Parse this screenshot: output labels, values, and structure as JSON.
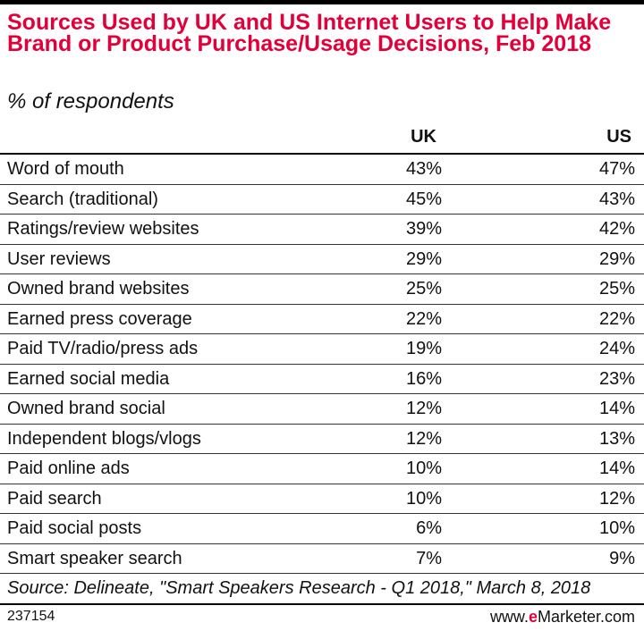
{
  "chart_data": {
    "type": "table",
    "title": "Sources Used by UK and US Internet Users to Help Make Brand or Product Purchase/Usage Decisions, Feb 2018",
    "subtitle": "% of respondents",
    "columns": [
      "UK",
      "US"
    ],
    "rows": [
      {
        "label": "Word of mouth",
        "uk": "43%",
        "us": "47%"
      },
      {
        "label": "Search (traditional)",
        "uk": "45%",
        "us": "43%"
      },
      {
        "label": "Ratings/review websites",
        "uk": "39%",
        "us": "42%"
      },
      {
        "label": "User reviews",
        "uk": "29%",
        "us": "29%"
      },
      {
        "label": "Owned brand websites",
        "uk": "25%",
        "us": "25%"
      },
      {
        "label": "Earned press coverage",
        "uk": "22%",
        "us": "22%"
      },
      {
        "label": "Paid TV/radio/press ads",
        "uk": "19%",
        "us": "24%"
      },
      {
        "label": "Earned social media",
        "uk": "16%",
        "us": "23%"
      },
      {
        "label": "Owned brand social",
        "uk": "12%",
        "us": "14%"
      },
      {
        "label": "Independent blogs/vlogs",
        "uk": "12%",
        "us": "13%"
      },
      {
        "label": "Paid online ads",
        "uk": "10%",
        "us": "14%"
      },
      {
        "label": "Paid search",
        "uk": "10%",
        "us": "12%"
      },
      {
        "label": "Paid social posts",
        "uk": "6%",
        "us": "10%"
      },
      {
        "label": "Smart speaker search",
        "uk": "7%",
        "us": "9%"
      }
    ],
    "source": "Source: Delineate, \"Smart Speakers Research - Q1 2018,\" March 8, 2018"
  },
  "footer": {
    "chart_id": "237154",
    "brand_prefix": "www.",
    "brand_e": "e",
    "brand_suffix": "Marketer.com"
  },
  "colors": {
    "title": "#e2003a",
    "text": "#111111",
    "rule": "#000000"
  }
}
